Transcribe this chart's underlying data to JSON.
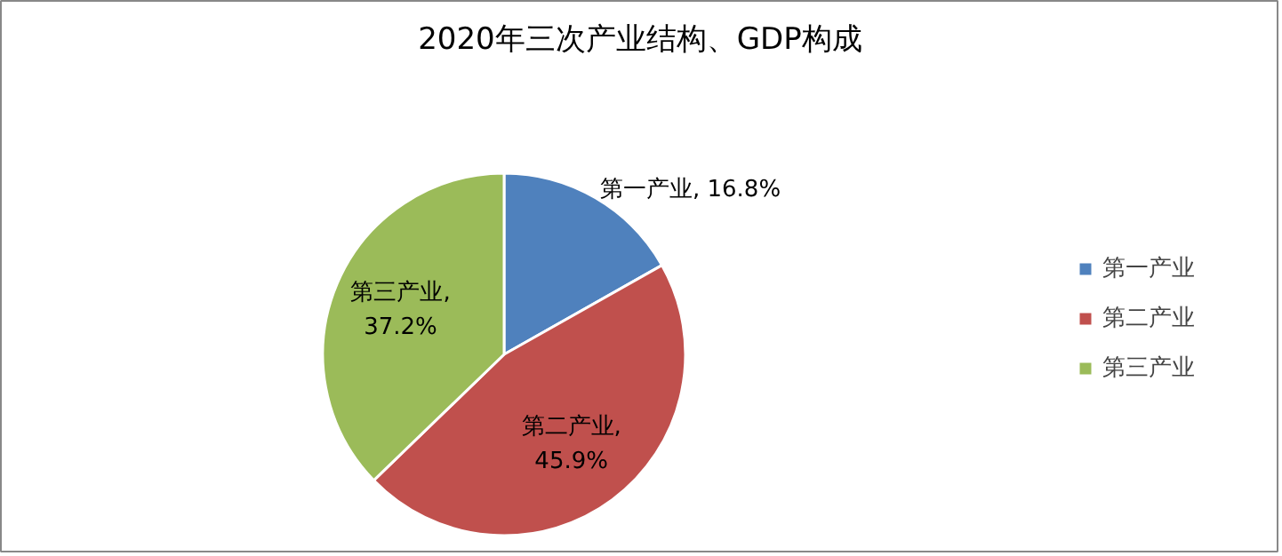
{
  "chart_data": {
    "type": "pie",
    "title": "2020年三次产业结构、GDP构成",
    "categories": [
      "第一产业",
      "第二产业",
      "第三产业"
    ],
    "values": [
      16.8,
      45.9,
      37.2
    ],
    "colors": [
      "#4f81bd",
      "#c0504d",
      "#9bbb59"
    ],
    "value_labels": [
      "第一产业, 16.8%",
      "第二产业, 45.9%",
      "第三产业, 37.2%"
    ],
    "legend": "right"
  }
}
